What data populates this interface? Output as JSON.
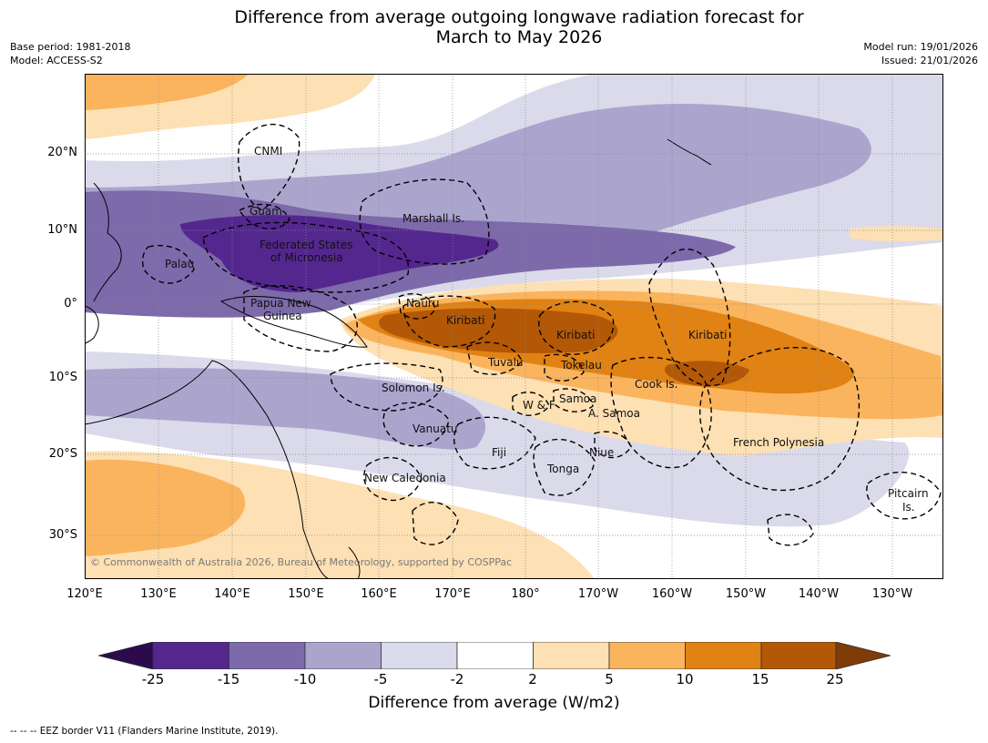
{
  "title_line1": "Difference from average outgoing longwave radiation forecast for",
  "title_line2": "March to May 2026",
  "meta": {
    "base_period": "Base period: 1981-2018",
    "model": "Model: ACCESS-S2",
    "model_run": "Model run: 19/01/2026",
    "issued": "Issued: 21/01/2026"
  },
  "lat_labels": [
    "20°N",
    "10°N",
    "0°",
    "10°S",
    "20°S",
    "30°S"
  ],
  "lon_labels": [
    "120°E",
    "130°E",
    "140°E",
    "150°E",
    "160°E",
    "170°E",
    "180°",
    "170°W",
    "160°W",
    "150°W",
    "140°W",
    "130°W"
  ],
  "places": {
    "cnmi": "CNMI",
    "guam": "Guam",
    "marshall": "Marshall Is.",
    "fsm1": "Federated States",
    "fsm2": "of Micronesia",
    "palau": "Palau",
    "png1": "Papua New",
    "png2": "Guinea",
    "nauru": "Nauru",
    "kiribati_w": "Kiribati",
    "kiribati_c": "Kiribati",
    "kiribati_e": "Kiribati",
    "tuvalu": "Tuvalu",
    "tokelau": "Tokelau",
    "cook": "Cook Is.",
    "solomon": "Solomon Is.",
    "wf": "W & F",
    "samoa": "Samoa",
    "asamoa": "A. Samoa",
    "vanuatu": "Vanuatu",
    "fiji": "Fiji",
    "niue": "Niue",
    "tonga": "Tonga",
    "newcal": "New Caledonia",
    "frpoly": "French Polynesia",
    "pitcairn1": "Pitcairn",
    "pitcairn2": "Is."
  },
  "copyright": "© Commonwealth of Australia 2026, Bureau of Meteorology, supported by COSPPac",
  "colorbar": {
    "ticks": [
      "-25",
      "-15",
      "-10",
      "-5",
      "-2",
      "2",
      "5",
      "10",
      "15",
      "25"
    ],
    "colors": [
      "#2d0a4e",
      "#54278f",
      "#7d6aaa",
      "#aba5ce",
      "#dadaeb",
      "#ffffff",
      "#fde0b3",
      "#fbb45e",
      "#e08214",
      "#b35806",
      "#7f3b08"
    ],
    "label": "Difference from average (W/m2)"
  },
  "footer": "--  --  -- EEZ border V11 (Flanders Marine Institute, 2019)."
}
